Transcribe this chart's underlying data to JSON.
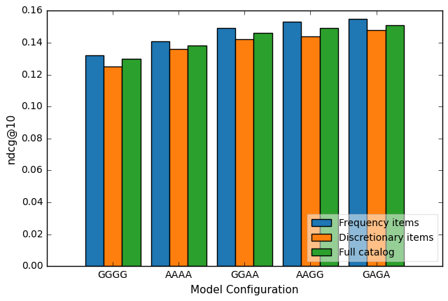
{
  "categories": [
    "GGGG",
    "AAAA",
    "GGAA",
    "AAGG",
    "GAGA"
  ],
  "series": {
    "Frequency items": [
      0.132,
      0.141,
      0.149,
      0.153,
      0.155
    ],
    "Discretionary items": [
      0.125,
      0.136,
      0.142,
      0.144,
      0.148
    ],
    "Full catalog": [
      0.13,
      0.138,
      0.146,
      0.149,
      0.151
    ]
  },
  "colors": {
    "Frequency items": "#1f77b4",
    "Discretionary items": "#ff7f0e",
    "Full catalog": "#2ca02c"
  },
  "xlabel": "Model Configuration",
  "ylabel": "ndcg@10",
  "ylim": [
    0.0,
    0.16
  ],
  "yticks": [
    0.0,
    0.02,
    0.04,
    0.06,
    0.08,
    0.1,
    0.12,
    0.14,
    0.16
  ],
  "bar_width": 0.28,
  "legend_loc": "lower right",
  "figsize": [
    6.4,
    4.3
  ],
  "dpi": 100,
  "fig_facecolor": "#ffffff",
  "axes_facecolor": "#ffffff"
}
